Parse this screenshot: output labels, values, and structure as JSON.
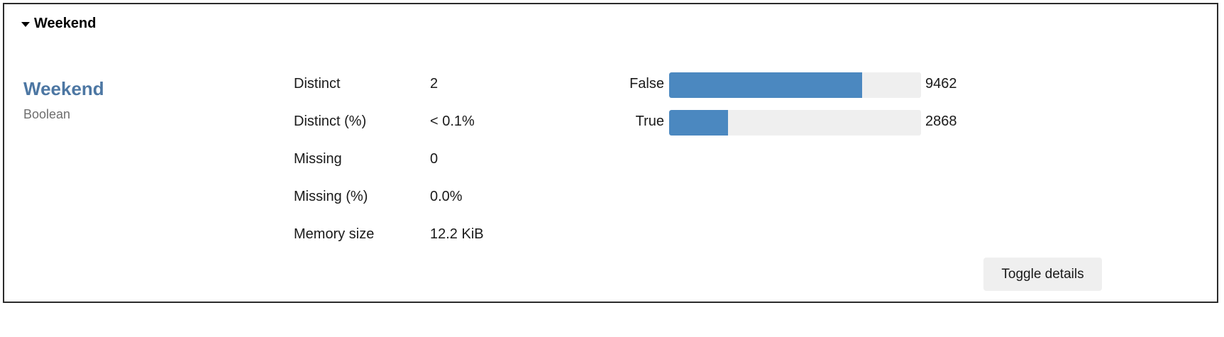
{
  "section": {
    "title": "Weekend"
  },
  "variable": {
    "name": "Weekend",
    "type": "Boolean"
  },
  "stats": [
    {
      "label": "Distinct",
      "value": "2"
    },
    {
      "label": "Distinct (%)",
      "value": "< 0.1%"
    },
    {
      "label": "Missing",
      "value": "0"
    },
    {
      "label": "Missing (%)",
      "value": "0.0%"
    },
    {
      "label": "Memory size",
      "value": "12.2 KiB"
    }
  ],
  "frequencies": {
    "bar_color": "#4b88c0",
    "track_color": "#efefef",
    "max_count": 12330,
    "items": [
      {
        "label": "False",
        "count": "9462",
        "fraction": 0.767
      },
      {
        "label": "True",
        "count": "2868",
        "fraction": 0.233
      }
    ]
  },
  "toggle": {
    "label": "Toggle details"
  },
  "colors": {
    "variable_name": "#4d77a3",
    "type_text": "#6e6e6e"
  }
}
